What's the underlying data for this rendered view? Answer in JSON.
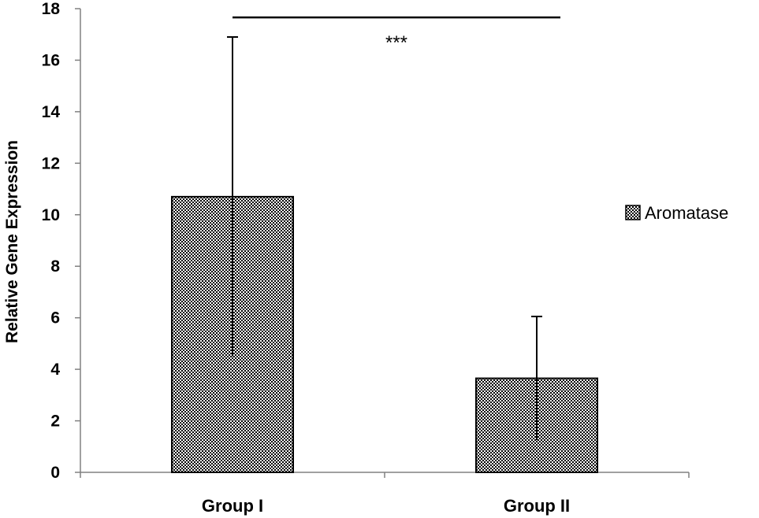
{
  "chart_data": {
    "type": "bar",
    "categories": [
      "Group I",
      "Group II"
    ],
    "series": [
      {
        "name": "Aromatase",
        "values": [
          10.7,
          3.65
        ],
        "error": [
          6.2,
          2.4
        ]
      }
    ],
    "ylabel": "Relative Gene Expression",
    "ylim": [
      0,
      18
    ],
    "yticks": [
      "0",
      "2",
      "4",
      "6",
      "8",
      "10",
      "12",
      "14",
      "16",
      "18"
    ],
    "legend": {
      "position": "right",
      "label": "Aromatase"
    },
    "annotation": {
      "text": "***",
      "between": [
        "Group I",
        "Group II"
      ]
    },
    "grid": false,
    "colors": {
      "bar_fill_light": "#ffffff",
      "bar_fill_dark": "#000000",
      "axis": "#808080"
    }
  }
}
